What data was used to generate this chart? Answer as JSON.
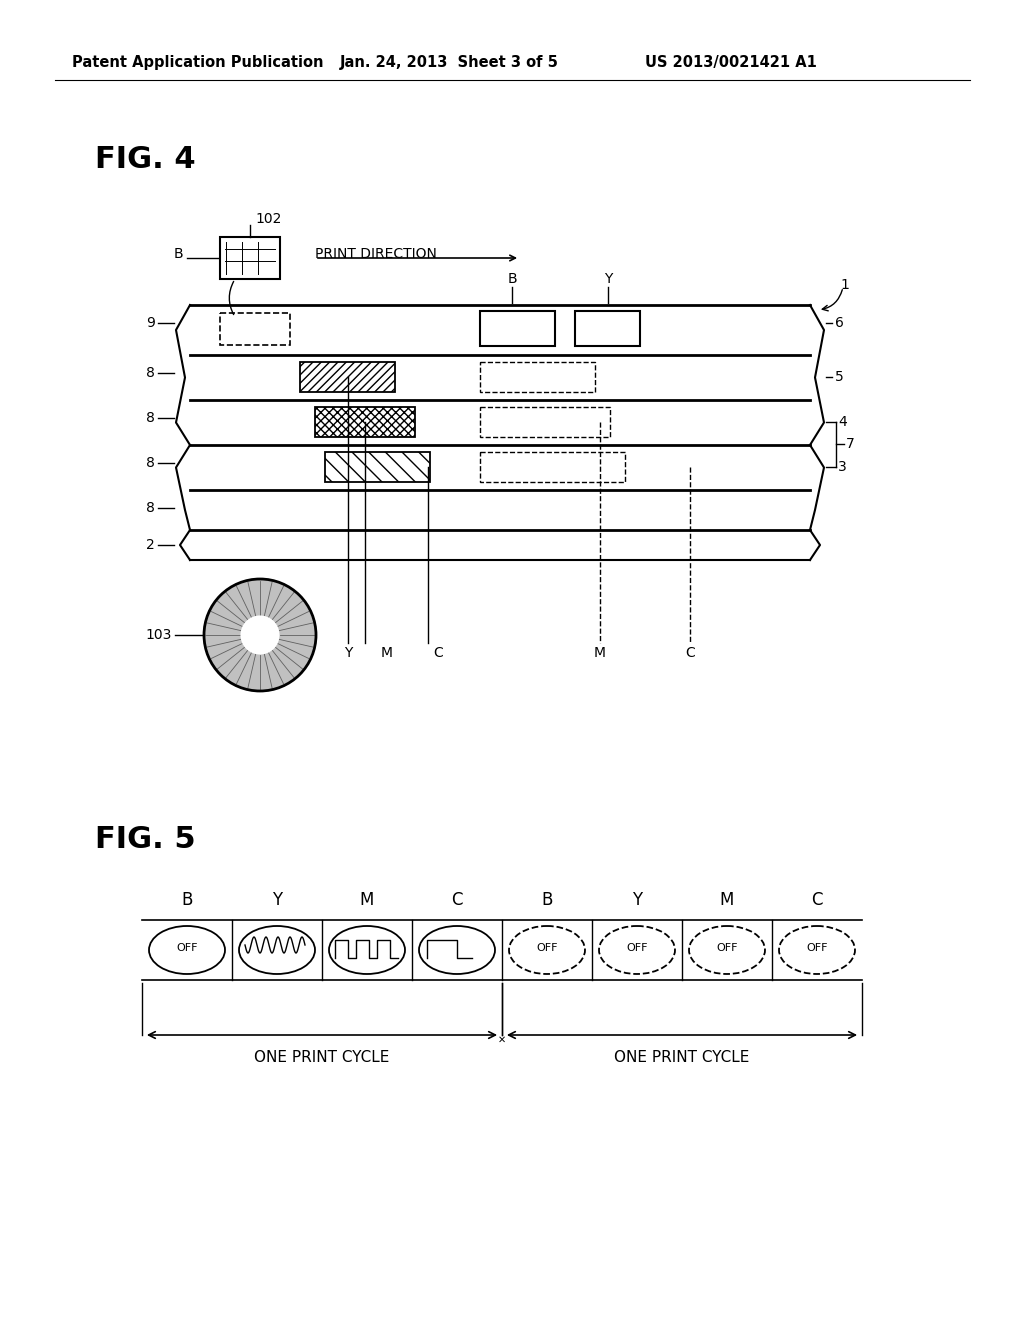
{
  "bg_color": "#ffffff",
  "header_left": "Patent Application Publication",
  "header_mid": "Jan. 24, 2013  Sheet 3 of 5",
  "header_right": "US 2013/0021421 A1",
  "fig4_label": "FIG. 4",
  "fig5_label": "FIG. 5",
  "fig5_labels": [
    "B",
    "Y",
    "M",
    "C",
    "B",
    "Y",
    "M",
    "C"
  ],
  "fig5_cycle_text": "ONE PRINT CYCLE"
}
